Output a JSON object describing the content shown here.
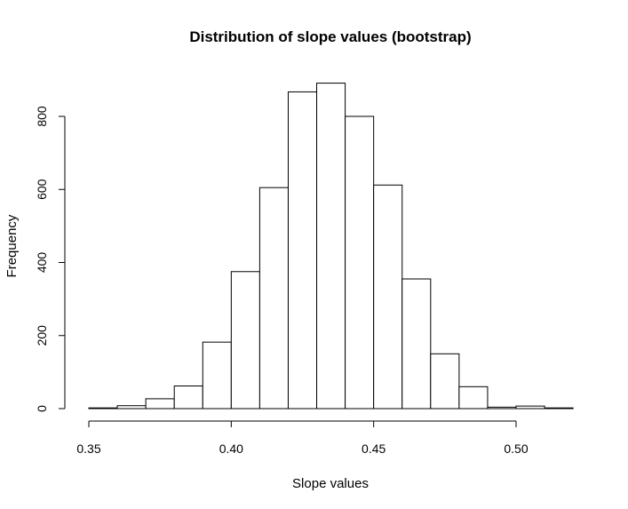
{
  "chart_data": {
    "type": "bar",
    "title": "Distribution of slope values (bootstrap)",
    "xlabel": "Slope values",
    "ylabel": "Frequency",
    "bins": [
      {
        "start": 0.35,
        "end": 0.36,
        "count": 2
      },
      {
        "start": 0.36,
        "end": 0.37,
        "count": 8
      },
      {
        "start": 0.37,
        "end": 0.38,
        "count": 27
      },
      {
        "start": 0.38,
        "end": 0.39,
        "count": 62
      },
      {
        "start": 0.39,
        "end": 0.4,
        "count": 182
      },
      {
        "start": 0.4,
        "end": 0.41,
        "count": 375
      },
      {
        "start": 0.41,
        "end": 0.42,
        "count": 605
      },
      {
        "start": 0.42,
        "end": 0.43,
        "count": 867
      },
      {
        "start": 0.43,
        "end": 0.44,
        "count": 891
      },
      {
        "start": 0.44,
        "end": 0.45,
        "count": 800
      },
      {
        "start": 0.45,
        "end": 0.46,
        "count": 612
      },
      {
        "start": 0.46,
        "end": 0.47,
        "count": 355
      },
      {
        "start": 0.47,
        "end": 0.48,
        "count": 150
      },
      {
        "start": 0.48,
        "end": 0.49,
        "count": 60
      },
      {
        "start": 0.49,
        "end": 0.5,
        "count": 4
      },
      {
        "start": 0.5,
        "end": 0.51,
        "count": 7
      },
      {
        "start": 0.51,
        "end": 0.52,
        "count": 2
      }
    ],
    "xlim": [
      0.35,
      0.52
    ],
    "ylim": [
      0,
      900
    ],
    "x_ticks": [
      0.35,
      0.4,
      0.45,
      0.5
    ],
    "x_tick_labels": [
      "0.35",
      "0.40",
      "0.45",
      "0.50"
    ],
    "y_ticks": [
      0,
      200,
      400,
      600,
      800
    ],
    "y_tick_labels": [
      "0",
      "200",
      "400",
      "600",
      "800"
    ],
    "bar_fill": "#ffffff",
    "bar_stroke": "#000000",
    "grid": false,
    "legend": "none"
  }
}
